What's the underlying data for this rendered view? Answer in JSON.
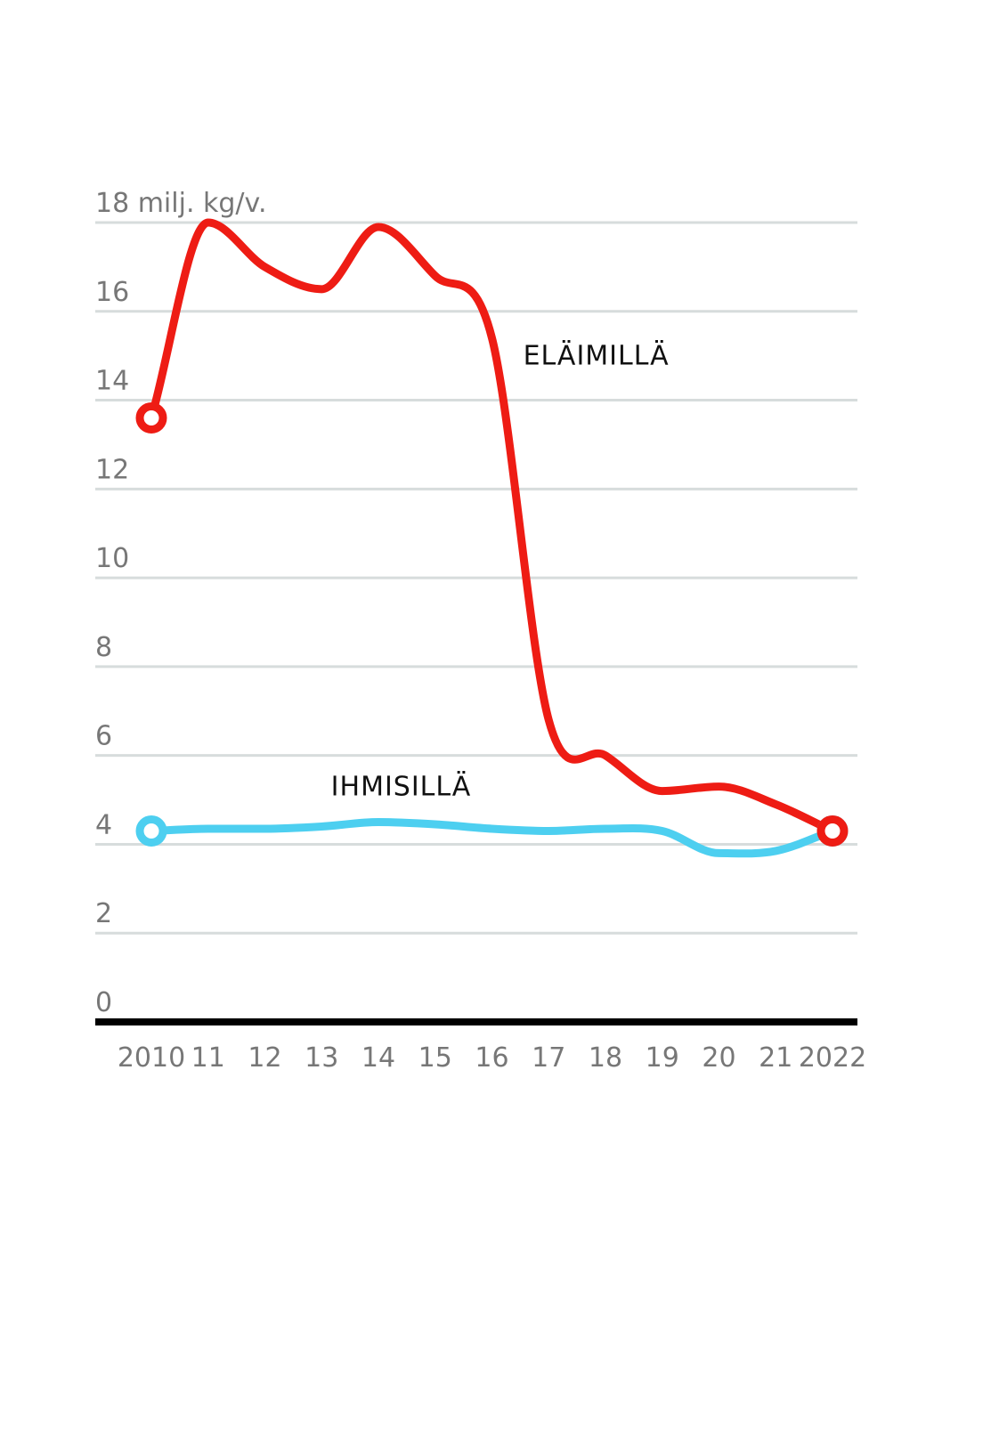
{
  "chart_data": {
    "type": "line",
    "ylabel": "milj. kg/v.",
    "ylim": [
      0,
      18
    ],
    "yticks": [
      {
        "value": 18,
        "label": "18 milj. kg/v."
      },
      {
        "value": 16,
        "label": "16"
      },
      {
        "value": 14,
        "label": "14"
      },
      {
        "value": 12,
        "label": "12"
      },
      {
        "value": 10,
        "label": "10"
      },
      {
        "value": 8,
        "label": "8"
      },
      {
        "value": 6,
        "label": "6"
      },
      {
        "value": 4,
        "label": "4"
      },
      {
        "value": 2,
        "label": "2"
      },
      {
        "value": 0,
        "label": "0"
      }
    ],
    "x": [
      2010,
      2011,
      2012,
      2013,
      2014,
      2015,
      2016,
      2017,
      2018,
      2019,
      2020,
      2021,
      2022
    ],
    "xtick_labels": [
      "2010",
      "11",
      "12",
      "13",
      "14",
      "15",
      "16",
      "17",
      "18",
      "19",
      "20",
      "21",
      "2022"
    ],
    "series": [
      {
        "name": "ELÄIMILLÄ",
        "color": "#ee1c14",
        "values": [
          13.6,
          18.0,
          17.0,
          16.5,
          17.9,
          16.8,
          15.4,
          6.8,
          6.0,
          5.2,
          5.3,
          4.9,
          4.3
        ]
      },
      {
        "name": "IHMISILLÄ",
        "color": "#4dcff0",
        "values": [
          4.3,
          4.35,
          4.35,
          4.4,
          4.5,
          4.45,
          4.35,
          4.3,
          4.35,
          4.3,
          3.8,
          3.85,
          4.3
        ]
      }
    ]
  }
}
